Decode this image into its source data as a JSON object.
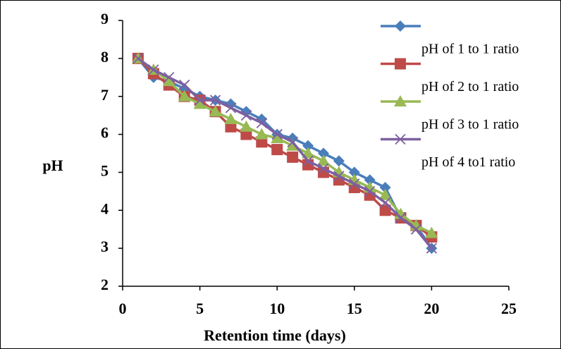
{
  "chart_data": {
    "type": "line",
    "x_label": "Retention time (days)",
    "y_label": "pH",
    "x": [
      1,
      2,
      3,
      4,
      5,
      6,
      7,
      8,
      9,
      10,
      11,
      12,
      13,
      14,
      15,
      16,
      17,
      18,
      19,
      20
    ],
    "series": [
      {
        "name": "pH of 1 to 1 ratio",
        "color": "#4a7ebb",
        "marker": "diamond",
        "values": [
          8.0,
          7.5,
          7.4,
          7.2,
          7.0,
          6.9,
          6.8,
          6.6,
          6.4,
          6.0,
          5.9,
          5.7,
          5.5,
          5.3,
          5.0,
          4.8,
          4.6,
          3.8,
          3.6,
          3.0
        ]
      },
      {
        "name": "pH of 2 to 1 ratio",
        "color": "#be4b48",
        "marker": "square",
        "values": [
          8.0,
          7.6,
          7.3,
          7.0,
          6.9,
          6.6,
          6.2,
          6.0,
          5.8,
          5.6,
          5.4,
          5.2,
          5.0,
          4.8,
          4.6,
          4.4,
          4.0,
          3.8,
          3.6,
          3.3
        ]
      },
      {
        "name": "pH of 3 to 1 ratio",
        "color": "#98b954",
        "marker": "triangle",
        "values": [
          8.0,
          7.7,
          7.4,
          7.0,
          6.8,
          6.6,
          6.4,
          6.2,
          6.0,
          5.9,
          5.7,
          5.5,
          5.3,
          5.0,
          4.8,
          4.6,
          4.4,
          3.9,
          3.6,
          3.4
        ]
      },
      {
        "name": "pH of 4 to1 ratio",
        "color": "#7d60a0",
        "marker": "x",
        "values": [
          8.0,
          7.7,
          7.5,
          7.3,
          6.9,
          6.9,
          6.7,
          6.5,
          6.3,
          6.0,
          5.8,
          5.3,
          5.1,
          4.9,
          4.7,
          4.5,
          4.2,
          3.8,
          3.5,
          3.0
        ]
      }
    ],
    "xlim": [
      0,
      25
    ],
    "xticks": [
      0,
      5,
      10,
      15,
      20,
      25
    ],
    "ylim": [
      2,
      9
    ],
    "yticks": [
      2,
      3,
      4,
      5,
      6,
      7,
      8,
      9
    ],
    "grid": false,
    "legend": "upper right"
  }
}
